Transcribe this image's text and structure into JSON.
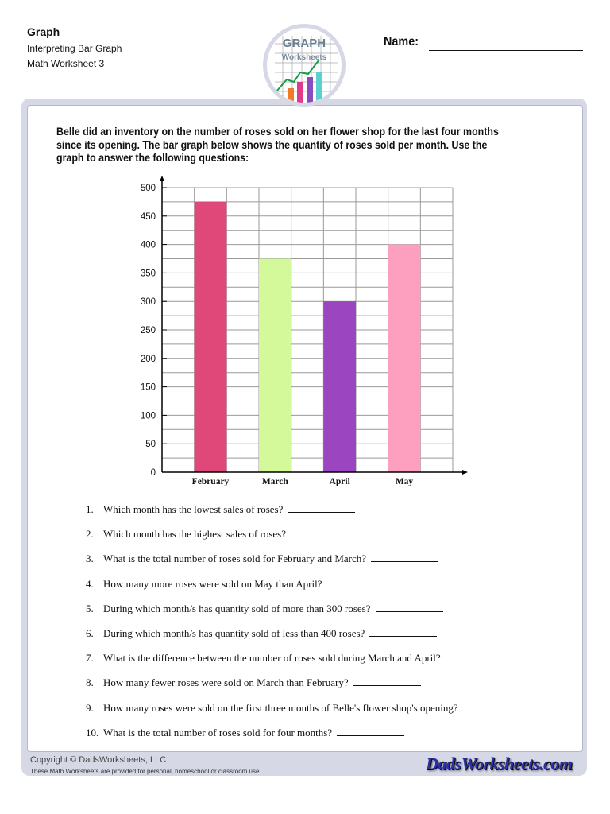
{
  "header": {
    "title": "Graph",
    "subtitle1": "Interpreting Bar Graph",
    "subtitle2": "Math Worksheet 3",
    "name_label": "Name:"
  },
  "logo": {
    "line1": "GRAPH",
    "line2": "Worksheets"
  },
  "intro": "Belle did an inventory on the number of roses sold on her flower shop for the last four months since its opening.  The bar graph below shows the quantity of roses sold per month.  Use the graph to answer the following questions:",
  "chart_data": {
    "type": "bar",
    "categories": [
      "February",
      "March",
      "April",
      "May"
    ],
    "values": [
      475,
      375,
      300,
      400
    ],
    "colors": [
      "#e0487a",
      "#d4f99a",
      "#9b45c0",
      "#fd9fbe"
    ],
    "yticks": [
      "0",
      "50",
      "100",
      "150",
      "200",
      "250",
      "300",
      "350",
      "400",
      "450",
      "500"
    ],
    "ylim": [
      0,
      500
    ],
    "grid": true
  },
  "questions": [
    {
      "num": "1.",
      "text": "Which month has the lowest sales of roses?"
    },
    {
      "num": "2.",
      "text": "Which month has the highest sales of roses?"
    },
    {
      "num": "3.",
      "text": "What is the total number of roses sold for February and March?"
    },
    {
      "num": "4.",
      "text": "How many more roses were sold on May than April?"
    },
    {
      "num": "5.",
      "text": "During which month/s has quantity sold of more than 300 roses?"
    },
    {
      "num": "6.",
      "text": "During which month/s has quantity sold of less than 400 roses?"
    },
    {
      "num": "7.",
      "text": "What is the difference between the number of roses sold during March and April?"
    },
    {
      "num": "8.",
      "text": "How many fewer roses were sold on March than February?"
    },
    {
      "num": "9.",
      "text": "How many roses were sold on the first three months of Belle's flower shop's opening?"
    },
    {
      "num": "10.",
      "text": "What is the total number of roses sold for four months?"
    }
  ],
  "footer": {
    "copyright": "Copyright © DadsWorksheets, LLC",
    "note": "These Math Worksheets are provided for personal, homeschool or classroom use.",
    "brand": "DadsWorksheets.com"
  }
}
